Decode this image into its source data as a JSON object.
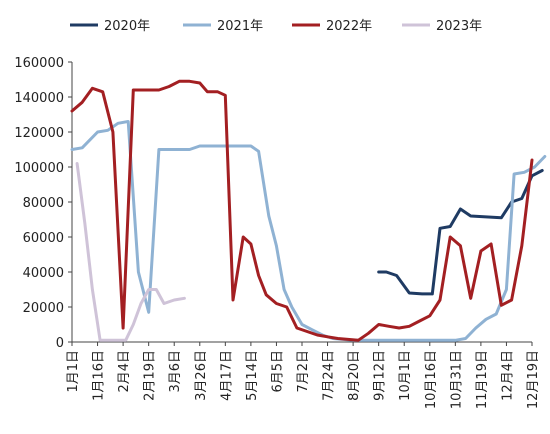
{
  "chart_data": {
    "type": "line",
    "x": [
      "1月1日",
      "1月16日",
      "2月4日",
      "2月19日",
      "3月6日",
      "3月26日",
      "4月17日",
      "5月14日",
      "6月5日",
      "7月2日",
      "7月24日",
      "8月20日",
      "9月12日",
      "10月1日",
      "10月16日",
      "10月31日",
      "11月19日",
      "12月4日",
      "12月19日"
    ],
    "ylim": [
      0,
      160000
    ],
    "y_ticks": [
      0,
      20000,
      40000,
      60000,
      80000,
      100000,
      120000,
      140000,
      160000
    ],
    "y_tick_labels": [
      "0",
      "20000",
      "40000",
      "60000",
      "80000",
      "100000",
      "120000",
      "140000",
      "160000"
    ],
    "legend_position": "top",
    "grid": false,
    "series": [
      {
        "name": "2020年",
        "color": "#1f3b63",
        "points": [
          [
            12.0,
            40000
          ],
          [
            12.3,
            40000
          ],
          [
            12.7,
            38000
          ],
          [
            13.2,
            28000
          ],
          [
            13.7,
            27500
          ],
          [
            14.1,
            27500
          ],
          [
            14.4,
            65000
          ],
          [
            14.8,
            66000
          ],
          [
            15.2,
            76000
          ],
          [
            15.6,
            72000
          ],
          [
            16.2,
            71500
          ],
          [
            16.8,
            71000
          ],
          [
            17.2,
            80000
          ],
          [
            17.6,
            82000
          ],
          [
            18.0,
            95000
          ],
          [
            18.4,
            98000
          ]
        ]
      },
      {
        "name": "2021年",
        "color": "#8fb2d3",
        "points": [
          [
            0.0,
            110000
          ],
          [
            0.4,
            111000
          ],
          [
            1.0,
            120000
          ],
          [
            1.4,
            121000
          ],
          [
            1.8,
            125000
          ],
          [
            2.2,
            126000
          ],
          [
            2.6,
            40000
          ],
          [
            3.0,
            17000
          ],
          [
            3.4,
            110000
          ],
          [
            4.0,
            110000
          ],
          [
            4.6,
            110000
          ],
          [
            5.0,
            112000
          ],
          [
            5.6,
            112000
          ],
          [
            6.0,
            112000
          ],
          [
            6.4,
            112000
          ],
          [
            7.0,
            112000
          ],
          [
            7.3,
            109000
          ],
          [
            7.7,
            72000
          ],
          [
            8.0,
            55000
          ],
          [
            8.3,
            30000
          ],
          [
            8.6,
            20000
          ],
          [
            9.0,
            10000
          ],
          [
            9.4,
            7000
          ],
          [
            9.8,
            4000
          ],
          [
            10.2,
            2000
          ],
          [
            10.6,
            1500
          ],
          [
            11.0,
            1000
          ],
          [
            11.5,
            1000
          ],
          [
            12.0,
            1000
          ],
          [
            12.5,
            1000
          ],
          [
            13.0,
            1000
          ],
          [
            13.5,
            1000
          ],
          [
            14.0,
            1000
          ],
          [
            14.5,
            1000
          ],
          [
            15.0,
            1000
          ],
          [
            15.4,
            2000
          ],
          [
            15.8,
            8000
          ],
          [
            16.2,
            13000
          ],
          [
            16.6,
            16000
          ],
          [
            17.0,
            30000
          ],
          [
            17.3,
            96000
          ],
          [
            17.7,
            97000
          ],
          [
            18.1,
            100000
          ],
          [
            18.5,
            106000
          ]
        ]
      },
      {
        "name": "2022年",
        "color": "#a31f22",
        "points": [
          [
            0.0,
            132000
          ],
          [
            0.4,
            137000
          ],
          [
            0.8,
            145000
          ],
          [
            1.2,
            143000
          ],
          [
            1.6,
            120000
          ],
          [
            2.0,
            8000
          ],
          [
            2.4,
            144000
          ],
          [
            3.0,
            144000
          ],
          [
            3.4,
            144000
          ],
          [
            3.8,
            146000
          ],
          [
            4.2,
            149000
          ],
          [
            4.6,
            149000
          ],
          [
            5.0,
            148000
          ],
          [
            5.3,
            143000
          ],
          [
            5.7,
            143000
          ],
          [
            6.0,
            141000
          ],
          [
            6.3,
            24000
          ],
          [
            6.7,
            60000
          ],
          [
            7.0,
            56000
          ],
          [
            7.3,
            38000
          ],
          [
            7.6,
            27000
          ],
          [
            8.0,
            22000
          ],
          [
            8.4,
            20000
          ],
          [
            8.8,
            8000
          ],
          [
            9.2,
            6000
          ],
          [
            9.6,
            4000
          ],
          [
            10.0,
            3000
          ],
          [
            10.4,
            2000
          ],
          [
            10.8,
            1500
          ],
          [
            11.2,
            1000
          ],
          [
            11.6,
            5000
          ],
          [
            12.0,
            10000
          ],
          [
            12.4,
            9000
          ],
          [
            12.8,
            8000
          ],
          [
            13.2,
            9000
          ],
          [
            13.6,
            12000
          ],
          [
            14.0,
            15000
          ],
          [
            14.4,
            24000
          ],
          [
            14.8,
            60000
          ],
          [
            15.2,
            55000
          ],
          [
            15.6,
            25000
          ],
          [
            16.0,
            52000
          ],
          [
            16.4,
            56000
          ],
          [
            16.8,
            21000
          ],
          [
            17.2,
            24000
          ],
          [
            17.6,
            55000
          ],
          [
            18.0,
            104000
          ]
        ]
      },
      {
        "name": "2023年",
        "color": "#cfc3d8",
        "points": [
          [
            0.2,
            102000
          ],
          [
            0.5,
            68000
          ],
          [
            0.8,
            30000
          ],
          [
            1.1,
            1000
          ],
          [
            1.5,
            1000
          ],
          [
            1.8,
            1000
          ],
          [
            2.1,
            1000
          ],
          [
            2.4,
            10000
          ],
          [
            2.7,
            22000
          ],
          [
            3.0,
            30000
          ],
          [
            3.3,
            30000
          ],
          [
            3.6,
            22000
          ],
          [
            4.0,
            24000
          ],
          [
            4.4,
            25000
          ]
        ]
      }
    ]
  }
}
